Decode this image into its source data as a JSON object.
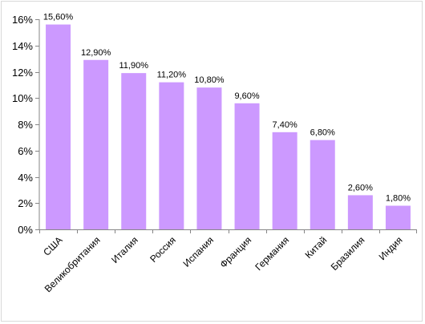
{
  "chart_data": {
    "type": "bar",
    "categories": [
      "США",
      "Великобритания",
      "Италия",
      "Россия",
      "Испания",
      "Франция",
      "Германия",
      "Китай",
      "Бразилия",
      "Индия"
    ],
    "values": [
      15.6,
      12.9,
      11.9,
      11.2,
      10.8,
      9.6,
      7.4,
      6.8,
      2.6,
      1.8
    ],
    "data_labels": [
      "15,60%",
      "12,90%",
      "11,90%",
      "11,20%",
      "10,80%",
      "9,60%",
      "7,40%",
      "6,80%",
      "2,60%",
      "1,80%"
    ],
    "title": "",
    "xlabel": "",
    "ylabel": "",
    "ylim": [
      0,
      16
    ],
    "yticks": [
      0,
      2,
      4,
      6,
      8,
      10,
      12,
      14,
      16
    ],
    "ytick_labels": [
      "0%",
      "2%",
      "4%",
      "6%",
      "8%",
      "10%",
      "12%",
      "14%",
      "16%"
    ],
    "bar_color": "#cc99ff",
    "axis_color": "#868686",
    "grid": false,
    "legend": "none"
  }
}
